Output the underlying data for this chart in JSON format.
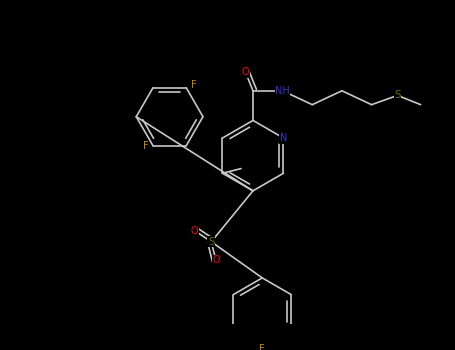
{
  "bg": "#000000",
  "bond_color": "#c8c8c8",
  "atom_colors": {
    "C": "#c8c8c8",
    "N": "#3333cc",
    "O": "#ff0000",
    "F": "#cc8800",
    "S": "#6b6b00"
  },
  "figsize": [
    4.55,
    3.5
  ],
  "dpi": 100
}
